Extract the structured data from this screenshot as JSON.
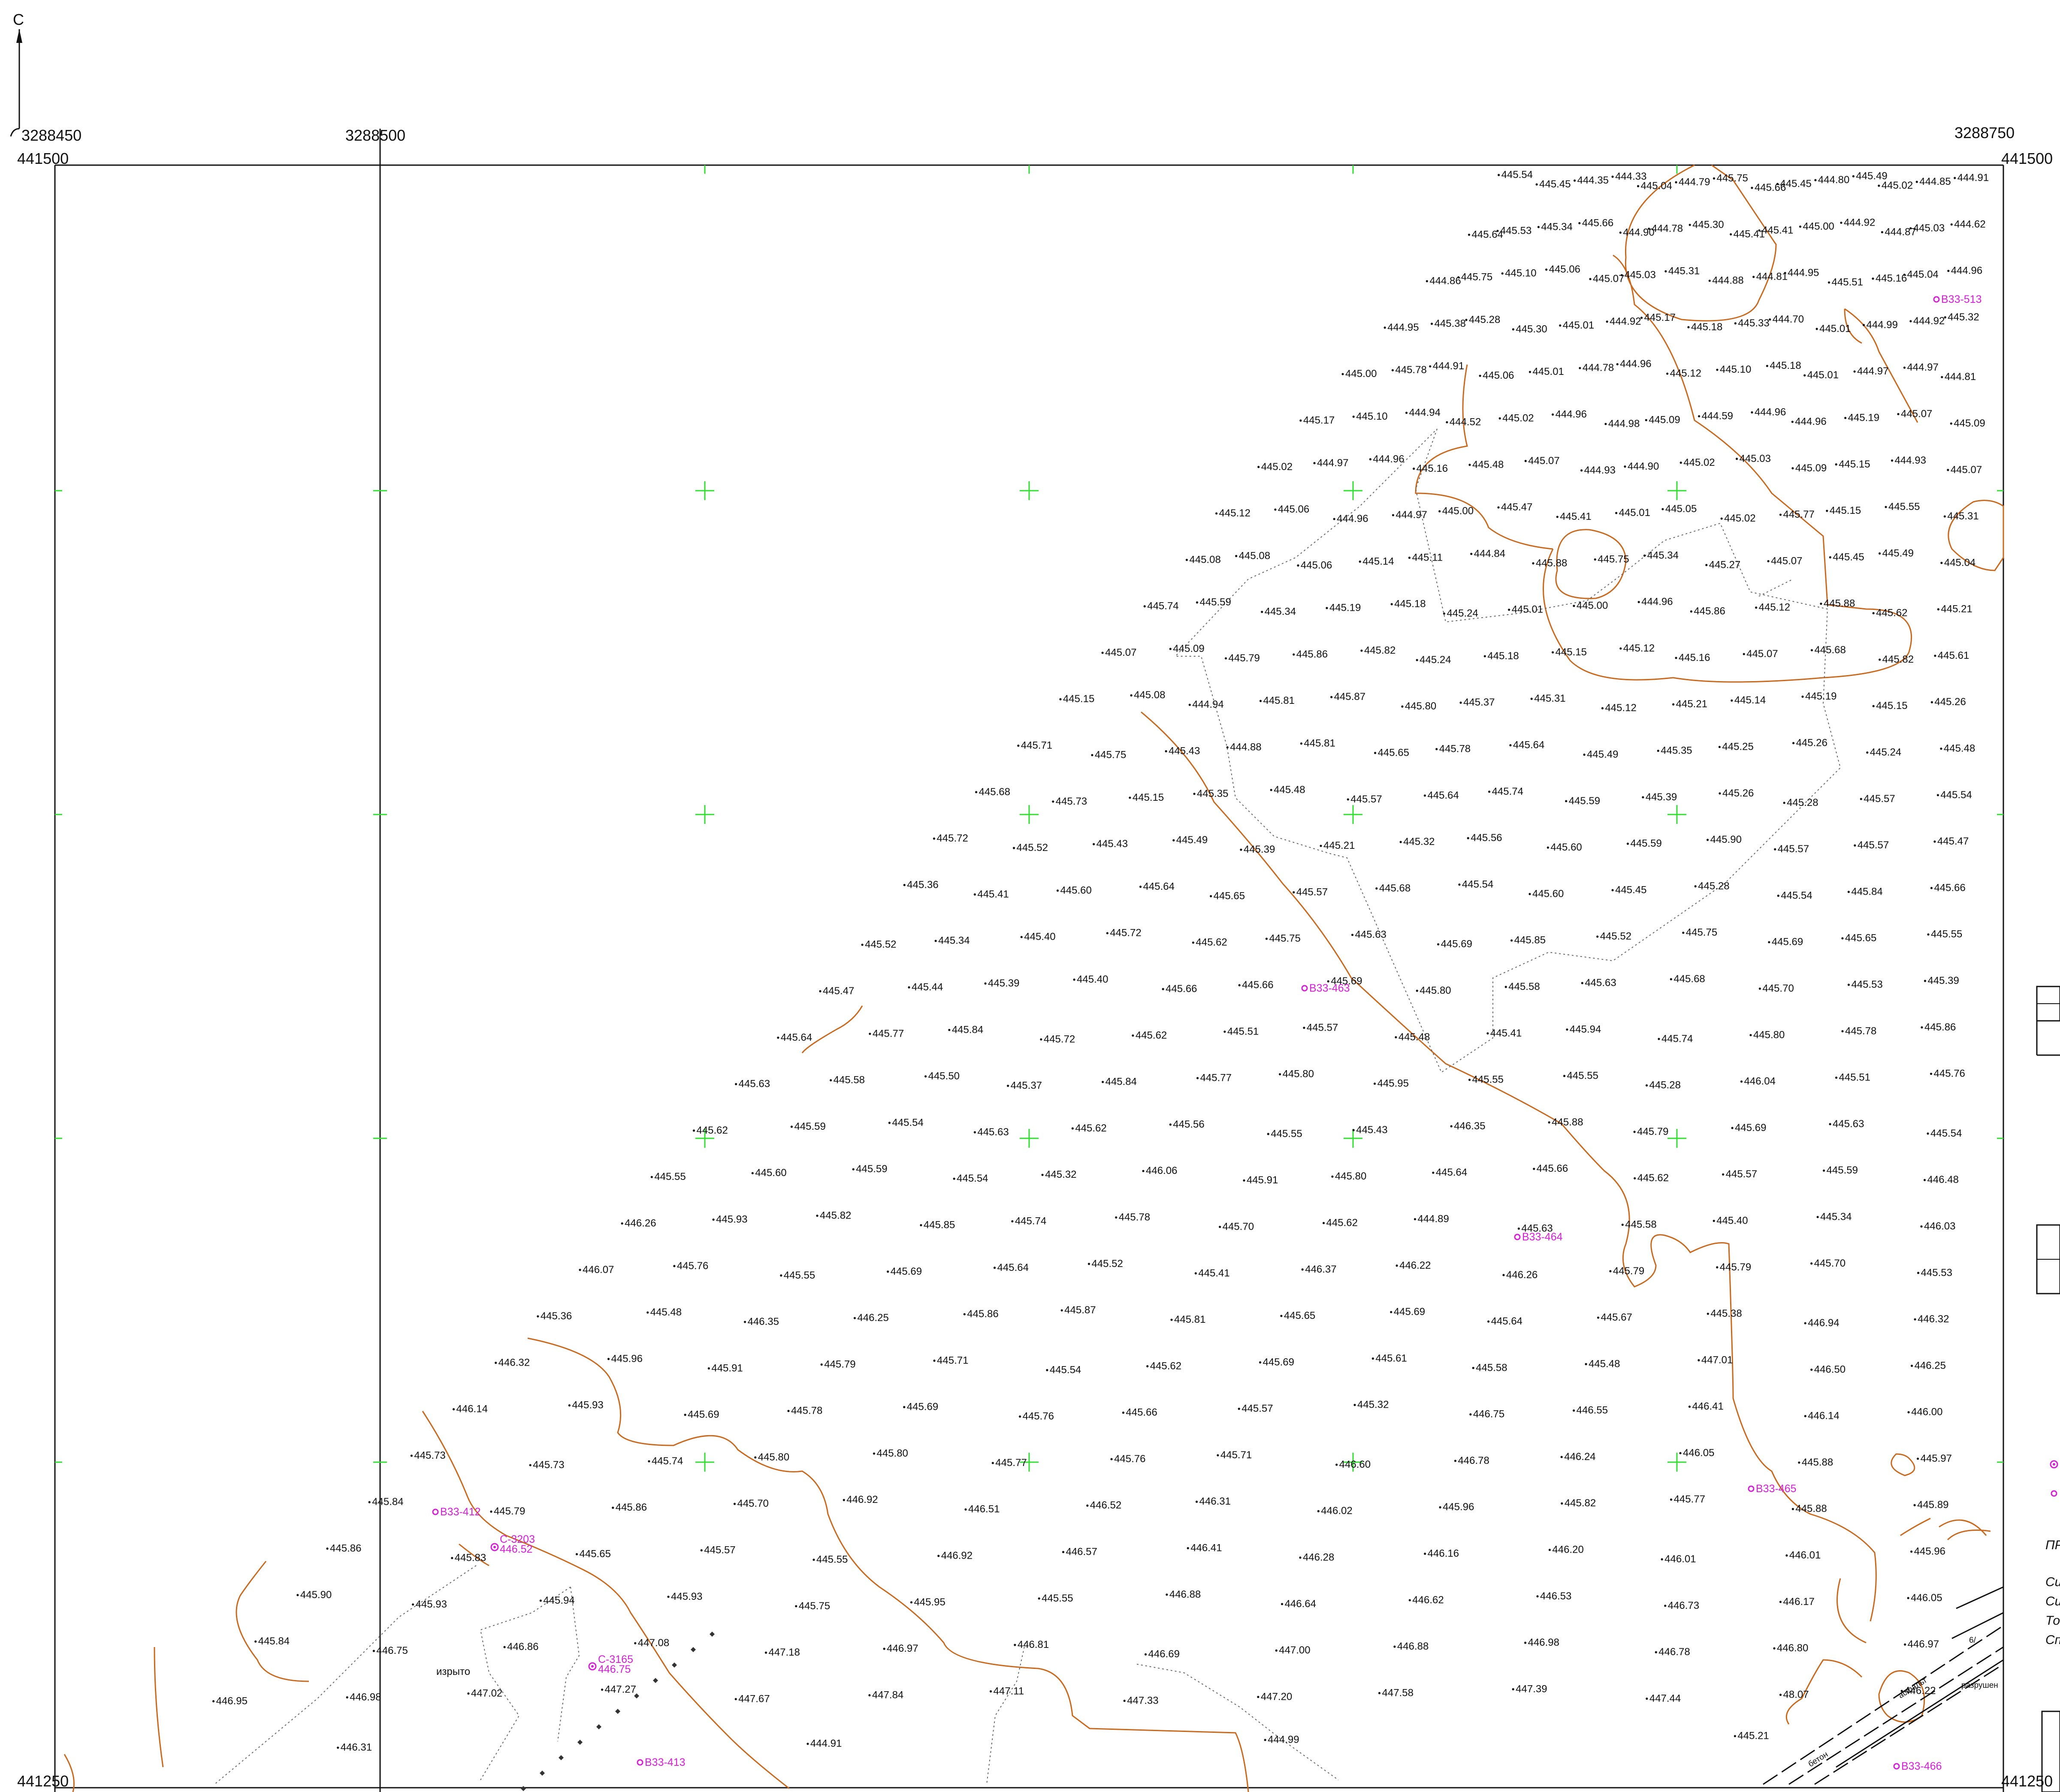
{
  "north_arrow": "С",
  "coords": {
    "x_left": "3288450",
    "x_mid": "3288500",
    "x_right": "3288750",
    "y_top_left": "441500",
    "y_top_right": "441500",
    "y_bottom_left": "441250",
    "y_bottom_right": "441250"
  },
  "colors": {
    "frame": "#111111",
    "contour": "#c8691e",
    "well": "#d61fd6",
    "grid_cross": "#2fe02f"
  },
  "wells": [
    "В33-513",
    "В33-463",
    "В33-464",
    "В33-412",
    "С-3203",
    "446.52",
    "С-3165",
    "446.75",
    "В33-413",
    "В33-465",
    "В33-466"
  ],
  "misc_labels": [
    "изрыто",
    "6/",
    "ПР",
    "Си",
    "Си",
    "То",
    "Сп",
    "разрушен",
    "асфальт",
    "бетон"
  ],
  "elevations": [
    "445.54",
    "445.45",
    "444.35",
    "444.33",
    "445.04",
    "444.79",
    "445.75",
    "445.66",
    "445.45",
    "444.80",
    "445.49",
    "445.02",
    "444.85",
    "444.91",
    "445.64",
    "445.53",
    "445.34",
    "445.66",
    "444.90",
    "444.78",
    "445.30",
    "445.41",
    "445.41",
    "445.00",
    "444.92",
    "444.87",
    "445.03",
    "444.62",
    "444.86",
    "445.75",
    "445.10",
    "445.06",
    "445.07",
    "445.03",
    "445.31",
    "444.88",
    "444.81",
    "444.95",
    "445.51",
    "445.16",
    "445.04",
    "444.96",
    "444.95",
    "445.38",
    "445.28",
    "445.30",
    "445.01",
    "444.92",
    "445.17",
    "445.18",
    "445.33",
    "444.70",
    "445.01",
    "444.99",
    "444.92",
    "445.32",
    "445.00",
    "445.78",
    "444.91",
    "445.06",
    "445.01",
    "444.78",
    "444.96",
    "445.12",
    "445.10",
    "445.18",
    "445.01",
    "444.97",
    "444.97",
    "444.81",
    "445.17",
    "445.10",
    "444.94",
    "444.52",
    "445.02",
    "444.96",
    "444.98",
    "445.09",
    "444.59",
    "444.96",
    "444.96",
    "445.19",
    "445.07",
    "445.09",
    "445.02",
    "444.97",
    "444.96",
    "445.16",
    "445.48",
    "445.07",
    "444.93",
    "444.90",
    "445.02",
    "445.03",
    "445.09",
    "445.15",
    "444.93",
    "445.07",
    "445.12",
    "445.06",
    "444.96",
    "444.97",
    "445.00",
    "445.47",
    "445.41",
    "445.01",
    "445.05",
    "445.02",
    "445.77",
    "445.15",
    "445.55",
    "445.31",
    "445.08",
    "445.08",
    "445.06",
    "445.14",
    "445.11",
    "444.84",
    "445.88",
    "445.75",
    "445.34",
    "445.27",
    "445.07",
    "445.45",
    "445.49",
    "445.04",
    "445.74",
    "445.59",
    "445.34",
    "445.19",
    "445.18",
    "445.24",
    "445.01",
    "445.00",
    "444.96",
    "445.86",
    "445.12",
    "445.88",
    "445.62",
    "445.21",
    "445.07",
    "445.09",
    "445.79",
    "445.86",
    "445.82",
    "445.24",
    "445.18",
    "445.15",
    "445.12",
    "445.16",
    "445.07",
    "445.68",
    "445.82",
    "445.61",
    "445.15",
    "445.08",
    "444.94",
    "445.81",
    "445.87",
    "445.80",
    "445.37",
    "445.31",
    "445.12",
    "445.21",
    "445.14",
    "445.19",
    "445.15",
    "445.26",
    "445.71",
    "445.75",
    "445.43",
    "444.88",
    "445.81",
    "445.65",
    "445.78",
    "445.64",
    "445.49",
    "445.35",
    "445.25",
    "445.26",
    "445.24",
    "445.48",
    "445.68",
    "445.73",
    "445.15",
    "445.35",
    "445.48",
    "445.57",
    "445.64",
    "445.74",
    "445.59",
    "445.39",
    "445.26",
    "445.28",
    "445.57",
    "445.54",
    "445.72",
    "445.52",
    "445.43",
    "445.49",
    "445.39",
    "445.21",
    "445.32",
    "445.56",
    "445.60",
    "445.59",
    "445.90",
    "445.57",
    "445.57",
    "445.47",
    "445.36",
    "445.41",
    "445.60",
    "445.64",
    "445.65",
    "445.57",
    "445.68",
    "445.54",
    "445.60",
    "445.45",
    "445.28",
    "445.54",
    "445.84",
    "445.66",
    "445.52",
    "445.34",
    "445.40",
    "445.72",
    "445.62",
    "445.75",
    "445.63",
    "445.69",
    "445.85",
    "445.52",
    "445.75",
    "445.69",
    "445.65",
    "445.55",
    "445.47",
    "445.44",
    "445.39",
    "445.40",
    "445.66",
    "445.66",
    "445.69",
    "445.80",
    "445.58",
    "445.63",
    "445.68",
    "445.70",
    "445.53",
    "445.39",
    "445.64",
    "445.77",
    "445.84",
    "445.72",
    "445.62",
    "445.51",
    "445.57",
    "445.48",
    "445.41",
    "445.94",
    "445.74",
    "445.80",
    "445.78",
    "445.86",
    "445.63",
    "445.58",
    "445.50",
    "445.37",
    "445.84",
    "445.77",
    "445.80",
    "445.95",
    "445.55",
    "445.55",
    "445.28",
    "446.04",
    "445.51",
    "445.76",
    "445.62",
    "445.59",
    "445.54",
    "445.63",
    "445.62",
    "445.56",
    "445.55",
    "445.43",
    "446.35",
    "445.88",
    "445.79",
    "445.69",
    "445.63",
    "445.54",
    "445.55",
    "445.60",
    "445.59",
    "445.54",
    "445.32",
    "446.06",
    "445.91",
    "445.80",
    "445.64",
    "445.66",
    "445.62",
    "445.57",
    "445.59",
    "446.48",
    "446.26",
    "445.93",
    "445.82",
    "445.85",
    "445.74",
    "445.78",
    "445.70",
    "445.62",
    "444.89",
    "445.63",
    "445.58",
    "445.40",
    "445.34",
    "446.03",
    "446.07",
    "445.76",
    "445.55",
    "445.69",
    "445.64",
    "445.52",
    "445.41",
    "446.37",
    "446.22",
    "446.26",
    "445.79",
    "445.79",
    "445.70",
    "445.53",
    "445.36",
    "445.48",
    "446.35",
    "446.25",
    "445.86",
    "445.87",
    "445.81",
    "445.65",
    "445.69",
    "445.64",
    "445.67",
    "445.38",
    "446.94",
    "446.32",
    "446.32",
    "445.96",
    "445.91",
    "445.79",
    "445.71",
    "445.54",
    "445.62",
    "445.69",
    "445.61",
    "445.58",
    "445.48",
    "447.01",
    "446.50",
    "446.25",
    "446.14",
    "445.93",
    "445.69",
    "445.78",
    "445.69",
    "445.76",
    "445.66",
    "445.57",
    "445.32",
    "446.75",
    "446.55",
    "446.41",
    "446.14",
    "446.00",
    "445.73",
    "445.73",
    "445.74",
    "445.80",
    "445.80",
    "445.77",
    "445.76",
    "445.71",
    "446.60",
    "446.78",
    "446.24",
    "446.05",
    "445.88",
    "445.97",
    "445.84",
    "445.79",
    "445.86",
    "445.70",
    "446.92",
    "446.51",
    "446.52",
    "446.31",
    "446.02",
    "445.96",
    "445.82",
    "445.77",
    "445.88",
    "445.89",
    "445.86",
    "445.83",
    "445.65",
    "445.57",
    "445.55",
    "446.92",
    "446.57",
    "446.41",
    "446.28",
    "446.16",
    "446.20",
    "446.01",
    "446.01",
    "445.96",
    "445.90",
    "445.93",
    "445.94",
    "445.93",
    "445.75",
    "445.95",
    "445.55",
    "446.88",
    "446.64",
    "446.62",
    "446.53",
    "446.73",
    "446.17",
    "446.05",
    "445.84",
    "446.75",
    "446.86",
    "447.08",
    "447.18",
    "446.97",
    "446.81",
    "446.69",
    "447.00",
    "446.88",
    "446.98",
    "446.78",
    "446.80",
    "446.97",
    "446.95",
    "446.98",
    "447.02",
    "447.27",
    "447.67",
    "447.84",
    "447.11",
    "447.33",
    "447.20",
    "447.58",
    "447.39",
    "447.44",
    "48.07",
    "446.22",
    "446.31",
    "444.91",
    "444.99",
    "445.21"
  ]
}
